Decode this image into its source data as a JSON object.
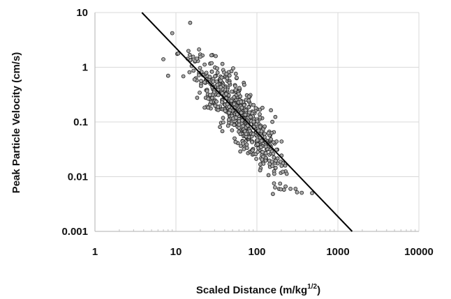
{
  "chart_data": {
    "type": "scatter",
    "xlabel": "Scaled Distance (m/kg",
    "xlabel_sup": "1/2",
    "xlabel_close": ")",
    "ylabel": "Peak Particle Velocity (cm/s)",
    "x_scale": "log",
    "y_scale": "log",
    "xlim": [
      1,
      10000
    ],
    "ylim": [
      0.001,
      10
    ],
    "x_ticks": [
      1,
      10,
      100,
      1000,
      10000
    ],
    "x_tick_labels": [
      "1",
      "10",
      "100",
      "1000",
      "10000"
    ],
    "y_ticks": [
      0.001,
      0.01,
      0.1,
      1,
      10
    ],
    "y_tick_labels": [
      "0.001",
      "0.01",
      "0.1",
      "1",
      "10"
    ],
    "grid": true,
    "legend": "none",
    "colors": {
      "points_fill": "#a9a9a9",
      "points_stroke": "#222222",
      "line": "#000000",
      "grid": "#d9d9d9",
      "axis": "#bfbfbf"
    },
    "trend_line": {
      "x": [
        3.8,
        1500
      ],
      "y": [
        10,
        0.001
      ]
    },
    "points_summary": {
      "count": 600,
      "x_range": [
        7,
        500
      ],
      "note_distribution": "log-normal scatter about trend line"
    }
  }
}
